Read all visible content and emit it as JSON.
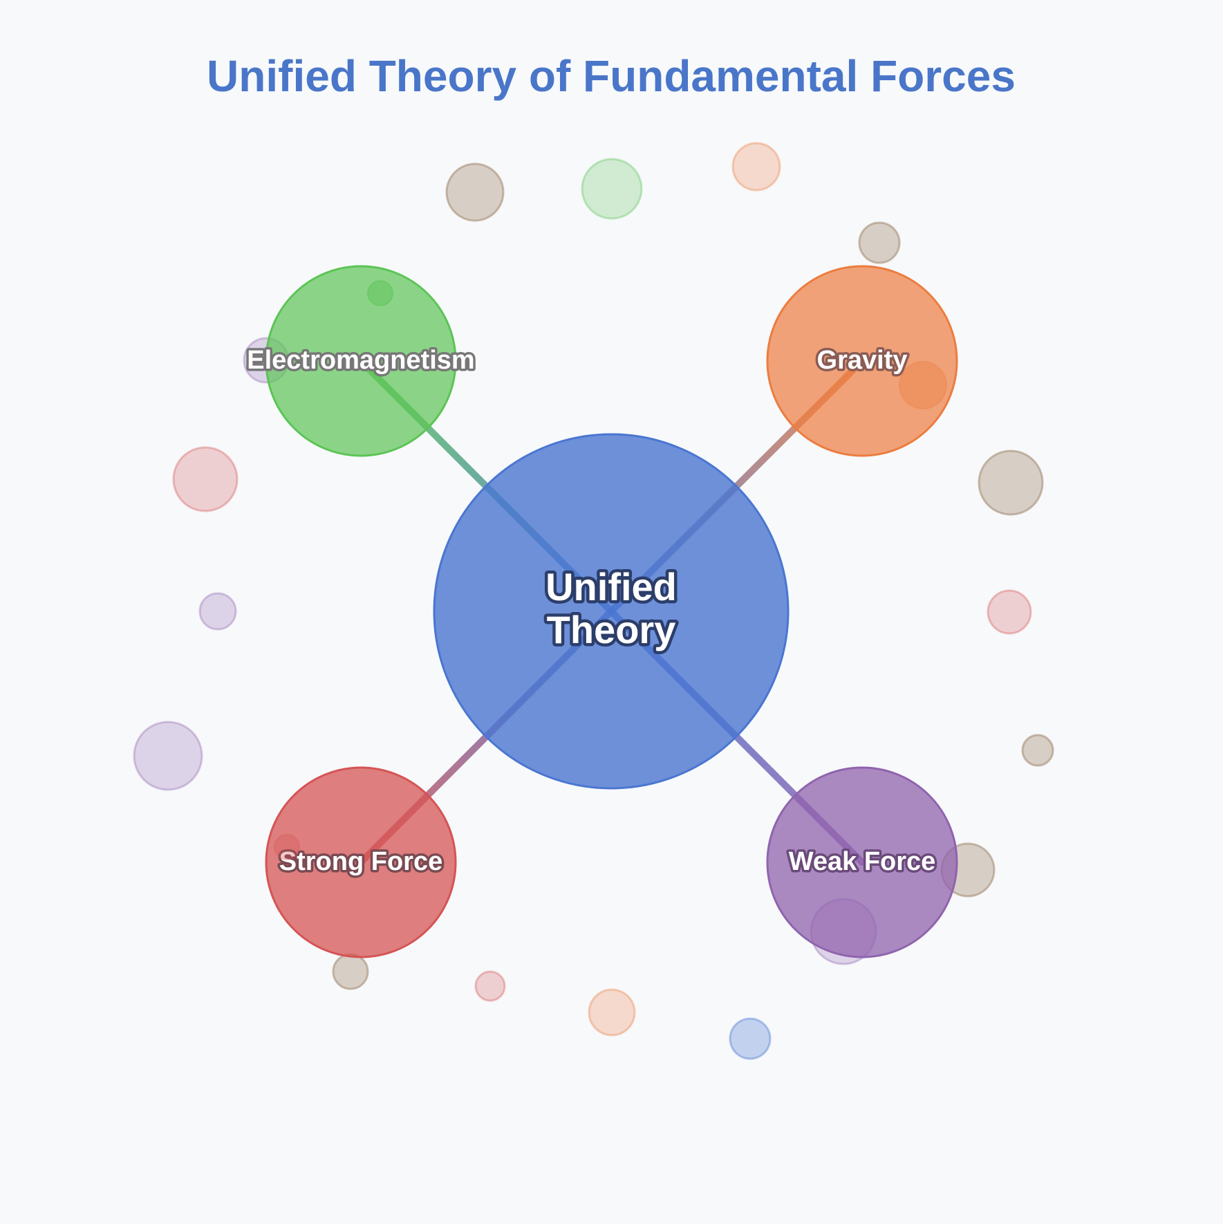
{
  "title": "Unified Theory of Fundamental Forces",
  "colors": {
    "background": "#f7f9fb",
    "title": "#4a76c9",
    "center": "#4a76d1",
    "electromagnetism": "#5cc455",
    "gravity": "#ec7c3f",
    "strong": "#d55454",
    "weak": "#9063ae",
    "particle_brown": "#a88f76"
  },
  "center": {
    "label_line1": "Unified",
    "label_line2": "Theory"
  },
  "forces": {
    "electromagnetism": {
      "label": "Electromagnetism"
    },
    "gravity": {
      "label": "Gravity"
    },
    "strong": {
      "label": "Strong Force"
    },
    "weak": {
      "label": "Weak Force"
    }
  }
}
